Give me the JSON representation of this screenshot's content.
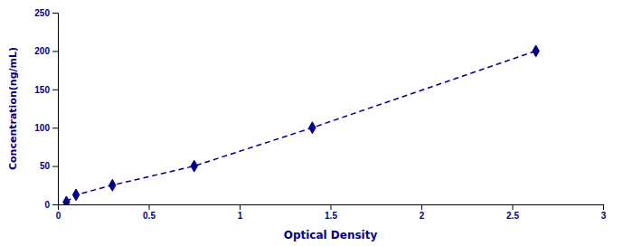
{
  "chart_data": {
    "type": "line",
    "x": [
      0.047,
      0.1,
      0.3,
      0.75,
      1.4,
      2.63
    ],
    "values": [
      3.1,
      12.5,
      25,
      50,
      100,
      200
    ],
    "xlabel": "Optical Density",
    "ylabel": "Concentration(ng/mL)",
    "xlim": [
      0,
      3
    ],
    "ylim": [
      0,
      250
    ],
    "xticks": [
      0,
      0.5,
      1,
      1.5,
      2,
      2.5,
      3
    ],
    "yticks": [
      0,
      50,
      100,
      150,
      200,
      250
    ],
    "color": "#00008B",
    "marker": "diamond",
    "line_style": "dashed",
    "grid": false
  }
}
